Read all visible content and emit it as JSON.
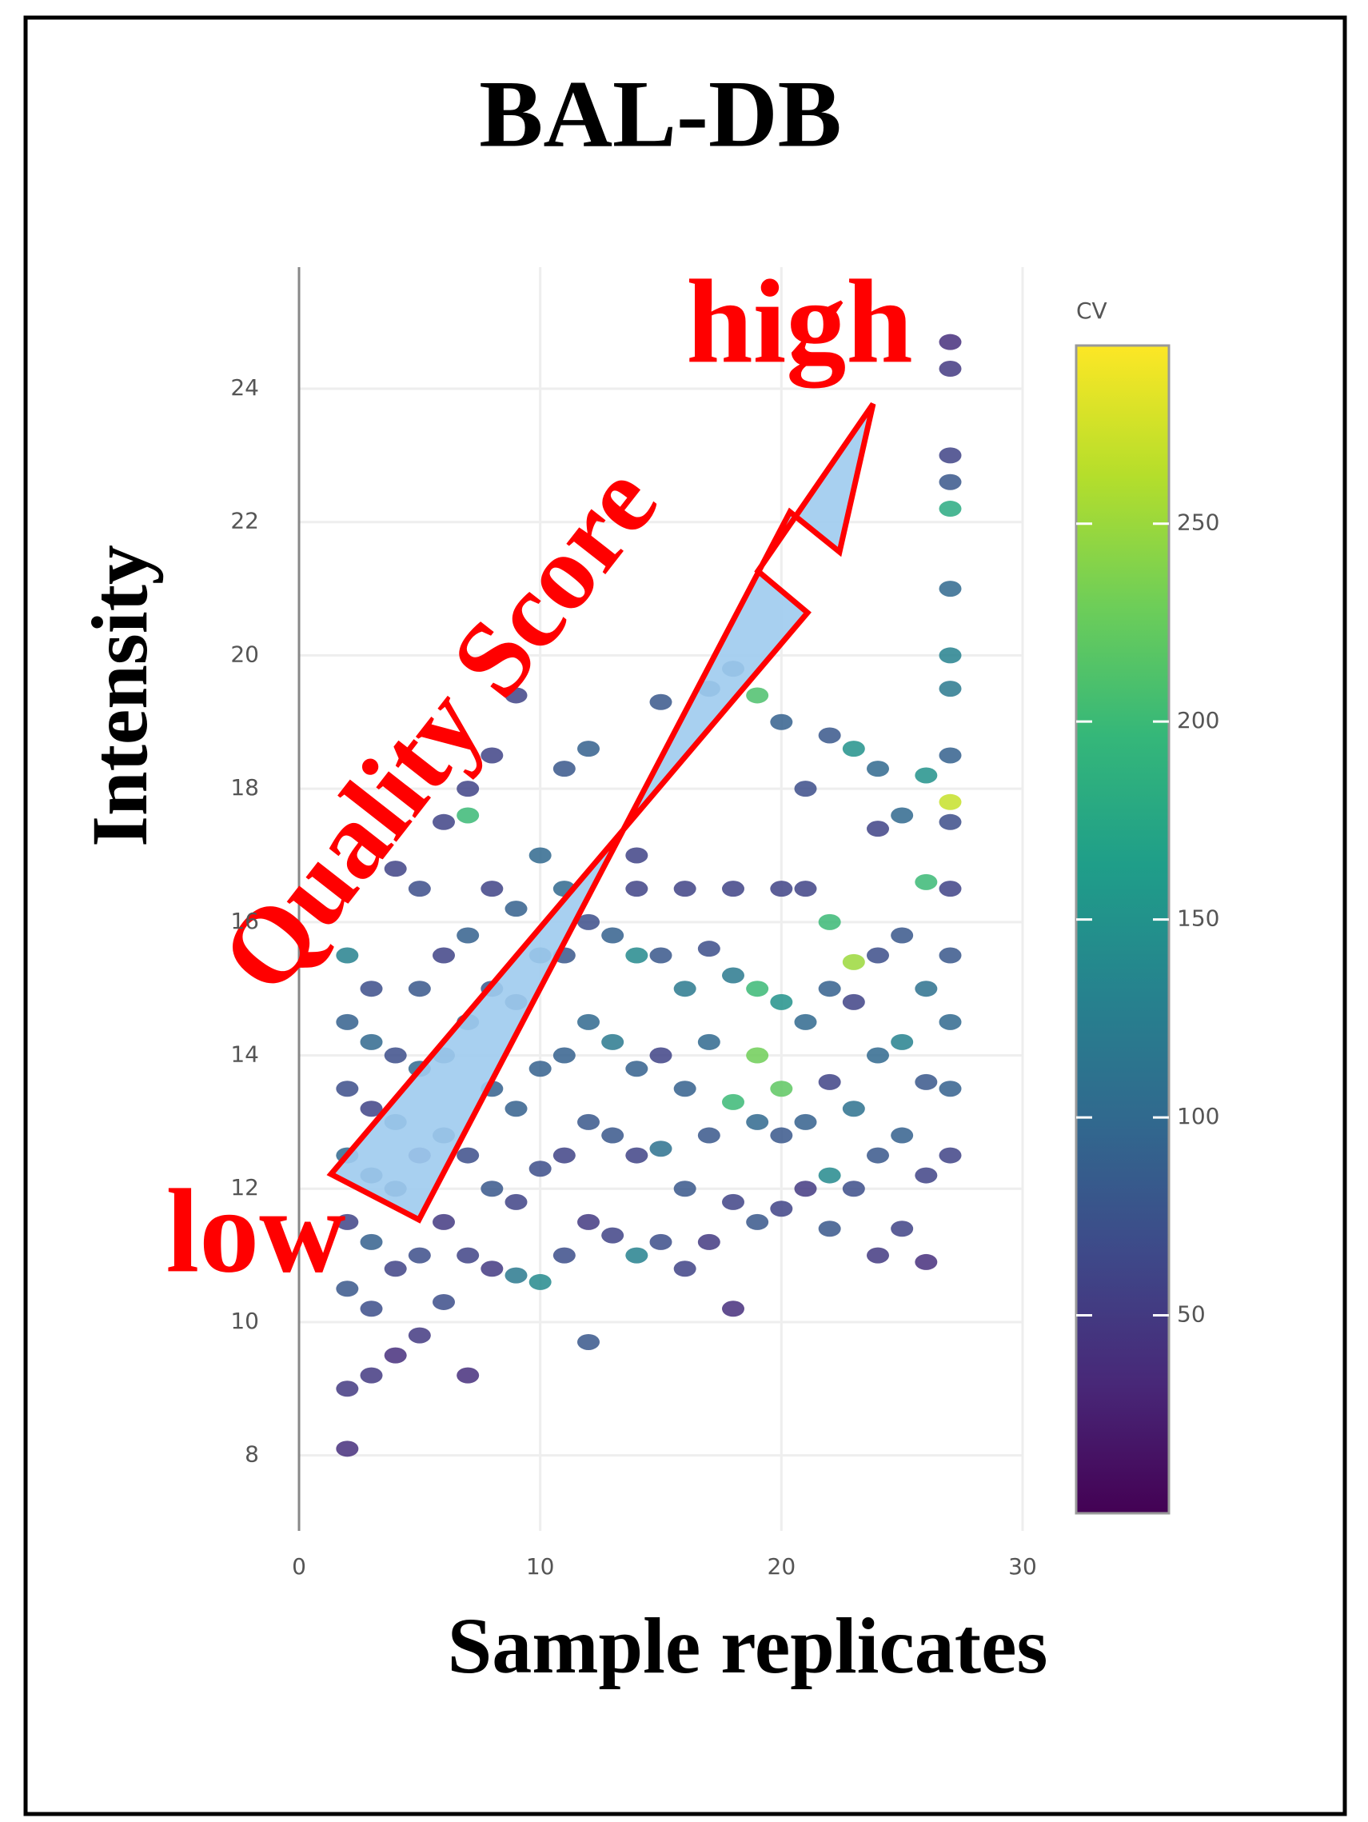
{
  "chart_data": {
    "type": "scatter",
    "title": "BAL-DB",
    "x_label": "Sample replicates",
    "y_label": "Intensity",
    "xlim": [
      0,
      30
    ],
    "xticks": [
      0,
      10,
      20,
      30
    ],
    "ylim": [
      7,
      25.5
    ],
    "yticks": [
      8,
      10,
      12,
      14,
      16,
      18,
      20,
      22,
      24
    ],
    "grid": true,
    "colorbar": {
      "title": "CV",
      "lim": [
        0,
        295
      ],
      "ticks": [
        50,
        100,
        150,
        200,
        250
      ],
      "colormap": [
        "#440154",
        "#482878",
        "#3e4989",
        "#31688e",
        "#26828e",
        "#1f9e89",
        "#35b779",
        "#6ece58",
        "#b5de2b",
        "#fde725"
      ]
    },
    "annotations": {
      "arrow_label": "Quality Score",
      "high": "high",
      "low": "low"
    },
    "series": [
      {
        "x": [
          2,
          2,
          2,
          2,
          2,
          2,
          2,
          2,
          3,
          3,
          3,
          3,
          3,
          3,
          3,
          4,
          4,
          4,
          4,
          4,
          4,
          5,
          5,
          5,
          5,
          5,
          5,
          6,
          6,
          6,
          6,
          6,
          6,
          7,
          7,
          7,
          7,
          7,
          7,
          7,
          8,
          8,
          8,
          8,
          8,
          8,
          9,
          9,
          9,
          9,
          9,
          9,
          10,
          10,
          10,
          10,
          10,
          11,
          11,
          11,
          11,
          11,
          11,
          12,
          12,
          12,
          12,
          12,
          12,
          13,
          13,
          13,
          13,
          14,
          14,
          14,
          14,
          14,
          14,
          15,
          15,
          15,
          15,
          15,
          16,
          16,
          16,
          16,
          16,
          17,
          17,
          17,
          17,
          17,
          18,
          18,
          18,
          18,
          18,
          18,
          19,
          19,
          19,
          19,
          19,
          20,
          20,
          20,
          20,
          20,
          20,
          21,
          21,
          21,
          21,
          21,
          22,
          22,
          22,
          22,
          22,
          22,
          23,
          23,
          23,
          23,
          23,
          24,
          24,
          24,
          24,
          24,
          24,
          25,
          25,
          25,
          25,
          25,
          26,
          26,
          26,
          26,
          26,
          26,
          27,
          27,
          27,
          27,
          27,
          27,
          27,
          27,
          27,
          27,
          27,
          27,
          27,
          27,
          27,
          27
        ],
        "values": [
          8.1,
          9.0,
          10.5,
          11.5,
          12.5,
          13.5,
          14.5,
          15.5,
          9.2,
          10.2,
          11.2,
          12.2,
          13.2,
          14.2,
          15.0,
          9.5,
          10.8,
          12.0,
          13.0,
          14.0,
          16.8,
          9.8,
          11.0,
          12.5,
          13.8,
          15.0,
          16.5,
          10.3,
          11.5,
          12.8,
          14.0,
          15.5,
          17.5,
          9.2,
          11.0,
          12.5,
          14.5,
          15.8,
          17.6,
          18.0,
          10.8,
          12.0,
          13.5,
          15.0,
          16.5,
          18.5,
          10.7,
          11.8,
          13.2,
          14.8,
          16.2,
          19.4,
          10.6,
          12.3,
          13.8,
          15.5,
          17.0,
          11.0,
          12.5,
          14.0,
          15.5,
          16.5,
          18.3,
          9.7,
          11.5,
          13.0,
          14.5,
          16.0,
          18.6,
          11.3,
          12.8,
          14.2,
          15.8,
          11.0,
          12.5,
          13.8,
          15.5,
          16.5,
          17.0,
          11.2,
          12.6,
          14.0,
          15.5,
          19.3,
          10.8,
          12.0,
          13.5,
          15.0,
          16.5,
          11.2,
          12.8,
          14.2,
          15.6,
          19.5,
          10.2,
          11.8,
          13.3,
          15.2,
          16.5,
          19.8,
          11.5,
          13.0,
          14.0,
          15.0,
          19.4,
          11.7,
          12.8,
          13.5,
          14.8,
          16.5,
          19.0,
          12.0,
          13.0,
          14.5,
          16.5,
          18.0,
          11.4,
          12.2,
          13.6,
          15.0,
          16.0,
          18.8,
          12.0,
          13.2,
          14.8,
          15.4,
          18.6,
          11.0,
          12.5,
          14.0,
          15.5,
          17.4,
          18.3,
          11.4,
          12.8,
          14.2,
          15.8,
          17.6,
          10.9,
          12.2,
          13.6,
          15.0,
          16.6,
          18.2,
          12.5,
          13.5,
          14.5,
          15.5,
          16.5,
          17.5,
          18.5,
          19.5,
          20.0,
          21.0,
          22.2,
          22.6,
          23.0,
          24.3,
          24.7,
          17.8
        ],
        "cv": [
          40,
          50,
          80,
          60,
          100,
          70,
          90,
          130,
          50,
          70,
          90,
          80,
          60,
          100,
          70,
          40,
          60,
          80,
          90,
          70,
          60,
          50,
          70,
          60,
          100,
          80,
          70,
          70,
          50,
          80,
          90,
          60,
          60,
          40,
          60,
          70,
          100,
          90,
          200,
          60,
          50,
          80,
          90,
          80,
          60,
          60,
          120,
          60,
          90,
          80,
          90,
          60,
          140,
          70,
          90,
          100,
          100,
          70,
          60,
          90,
          80,
          100,
          80,
          80,
          50,
          80,
          100,
          70,
          90,
          60,
          80,
          120,
          90,
          130,
          60,
          90,
          140,
          60,
          60,
          70,
          110,
          60,
          80,
          80,
          60,
          80,
          90,
          120,
          60,
          50,
          80,
          100,
          70,
          90,
          40,
          60,
          200,
          120,
          60,
          90,
          80,
          100,
          230,
          200,
          210,
          60,
          80,
          220,
          150,
          60,
          90,
          50,
          90,
          100,
          60,
          70,
          80,
          140,
          60,
          90,
          200,
          80,
          70,
          110,
          60,
          250,
          150,
          50,
          80,
          100,
          70,
          60,
          100,
          60,
          90,
          130,
          80,
          100,
          40,
          60,
          80,
          110,
          200,
          150,
          60,
          90,
          100,
          80,
          60,
          70,
          90,
          120,
          130,
          100,
          180,
          80,
          60,
          50,
          40,
          270
        ]
      }
    ]
  }
}
